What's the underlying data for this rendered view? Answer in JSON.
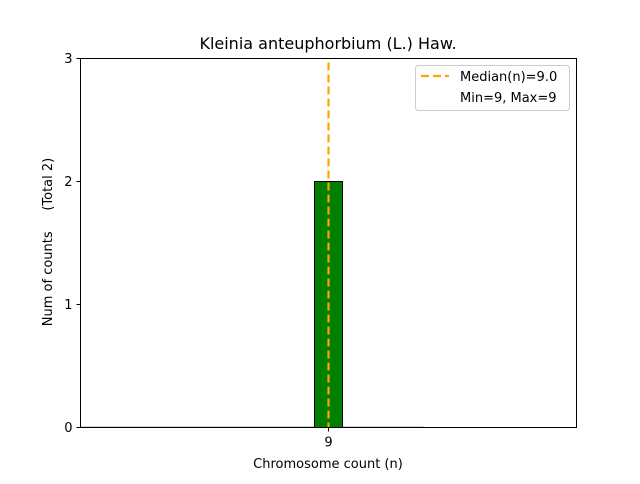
{
  "chart_data": {
    "type": "bar",
    "title": "Kleinia anteuphorbium (L.) Haw.",
    "xlabel": "Chromosome count (n)",
    "ylabel": "Num of counts     (Total 2)",
    "categories": [
      "9"
    ],
    "x": [
      9
    ],
    "values": [
      2
    ],
    "bar_color": "#008000",
    "xlim": [
      0.14,
      17.86
    ],
    "ylim": [
      0,
      3
    ],
    "yticks": [
      "0",
      "1",
      "2",
      "3"
    ],
    "xticks": [
      "9"
    ],
    "median": 9.0,
    "median_color": "#FFA500",
    "grid": false,
    "legend": {
      "placement": "top-right",
      "entries": [
        "Median(n)=9.0",
        "Min=9, Max=9"
      ]
    }
  }
}
